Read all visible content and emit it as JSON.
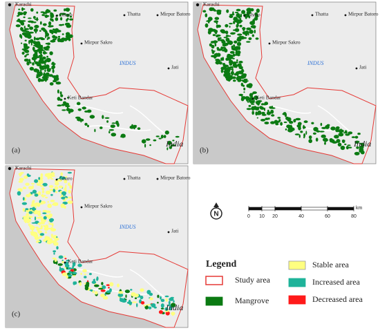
{
  "panels": [
    {
      "label": "(a)"
    },
    {
      "label": "(b)"
    },
    {
      "label": "(c)"
    }
  ],
  "places": {
    "karachi": "Karachi",
    "gharo": "Gharo",
    "thatta": "Thatta",
    "mirpur_batoro": "Mirpur Batoro",
    "mirpur_sakro": "Mirpur Sakro",
    "river": "INDUS",
    "jati": "Jati",
    "keti_bandar": "Keti Bandar",
    "country": "India"
  },
  "north_label": "N",
  "scale_bar": {
    "unit": "km",
    "ticks": [
      0,
      10,
      20,
      40,
      60,
      80
    ]
  },
  "legend": {
    "title": "Legend",
    "items": [
      {
        "label": "Study area",
        "fill": "#ffffff",
        "stroke": "#e53935"
      },
      {
        "label": "Mangrove",
        "fill": "#0b7a12",
        "stroke": "#0b7a12"
      },
      {
        "label": "Stable area",
        "fill": "#ffff80",
        "stroke": "#999999"
      },
      {
        "label": "Increased area",
        "fill": "#1fb39a",
        "stroke": "#1fb39a"
      },
      {
        "label": "Decreased area",
        "fill": "#ff1a1a",
        "stroke": "#ff1a1a"
      }
    ]
  }
}
